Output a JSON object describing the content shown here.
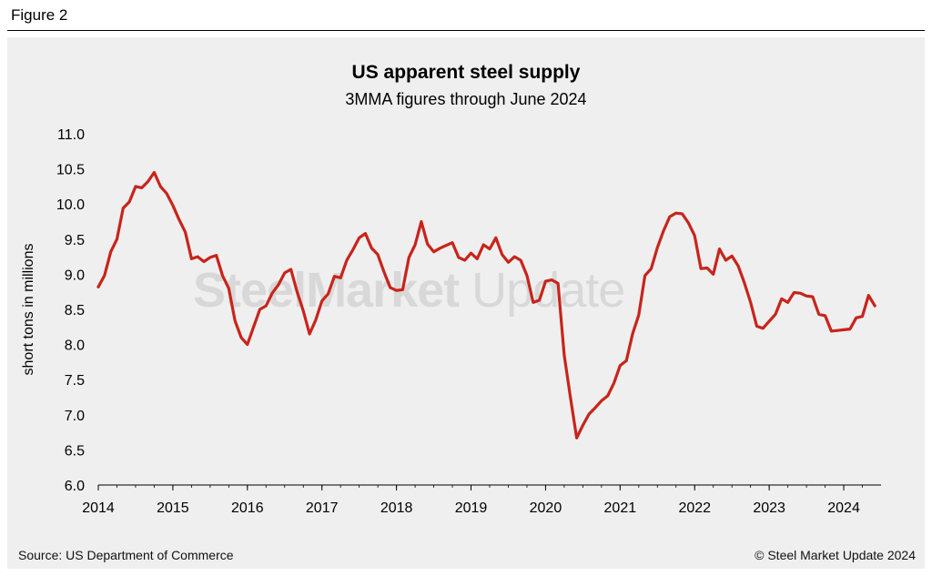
{
  "figure_label": "Figure 2",
  "footer": {
    "source": "Source: US Department of Commerce",
    "copyright": "© Steel Market Update 2024"
  },
  "watermark": {
    "bold": "SteelMarket",
    "light": " Update"
  },
  "colors": {
    "line": "#c8241b",
    "panel": "#efefef",
    "grid": "#d9d9d9"
  },
  "chart_data": {
    "type": "line",
    "title": "US apparent steel supply",
    "subtitle": "3MMA figures through June 2024",
    "ylabel": "short tons in millions",
    "xlabel": "",
    "ylim": [
      6.0,
      11.0
    ],
    "yticks": [
      "11.0",
      "10.5",
      "10.0",
      "9.5",
      "9.0",
      "8.5",
      "8.0",
      "7.5",
      "7.0",
      "6.5",
      "6.0"
    ],
    "xticks": [
      "2014",
      "2015",
      "2016",
      "2017",
      "2018",
      "2019",
      "2020",
      "2021",
      "2022",
      "2023",
      "2024"
    ],
    "x_start": "2014-01",
    "x_end": "2024-06",
    "grid": false,
    "series": [
      {
        "values": [
          8.82,
          8.98,
          9.32,
          9.5,
          9.94,
          10.03,
          10.25,
          10.23,
          10.32,
          10.45,
          10.25,
          10.15,
          9.98,
          9.78,
          9.6,
          9.22,
          9.25,
          9.18,
          9.24,
          9.27,
          8.98,
          8.8,
          8.34,
          8.1,
          8.0,
          8.25,
          8.5,
          8.55,
          8.73,
          8.85,
          9.02,
          9.07,
          8.75,
          8.48,
          8.15,
          8.35,
          8.62,
          8.72,
          8.97,
          8.95,
          9.2,
          9.35,
          9.52,
          9.58,
          9.37,
          9.28,
          9.03,
          8.81,
          8.77,
          8.78,
          9.24,
          9.42,
          9.75,
          9.43,
          9.32,
          9.37,
          9.41,
          9.45,
          9.24,
          9.2,
          9.3,
          9.22,
          9.42,
          9.36,
          9.52,
          9.28,
          9.17,
          9.25,
          9.2,
          8.98,
          8.6,
          8.63,
          8.9,
          8.92,
          8.87,
          7.85,
          7.25,
          6.67,
          6.85,
          7.01,
          7.1,
          7.2,
          7.27,
          7.45,
          7.7,
          7.77,
          8.15,
          8.42,
          8.98,
          9.08,
          9.38,
          9.62,
          9.82,
          9.87,
          9.86,
          9.73,
          9.55,
          9.08,
          9.09,
          9.0,
          9.36,
          9.2,
          9.26,
          9.12,
          8.88,
          8.6,
          8.26,
          8.23,
          8.33,
          8.43,
          8.65,
          8.6,
          8.74,
          8.73,
          8.69,
          8.68,
          8.43,
          8.41,
          8.19,
          8.2,
          8.21,
          8.22,
          8.38,
          8.4,
          8.7,
          8.55
        ]
      }
    ]
  }
}
